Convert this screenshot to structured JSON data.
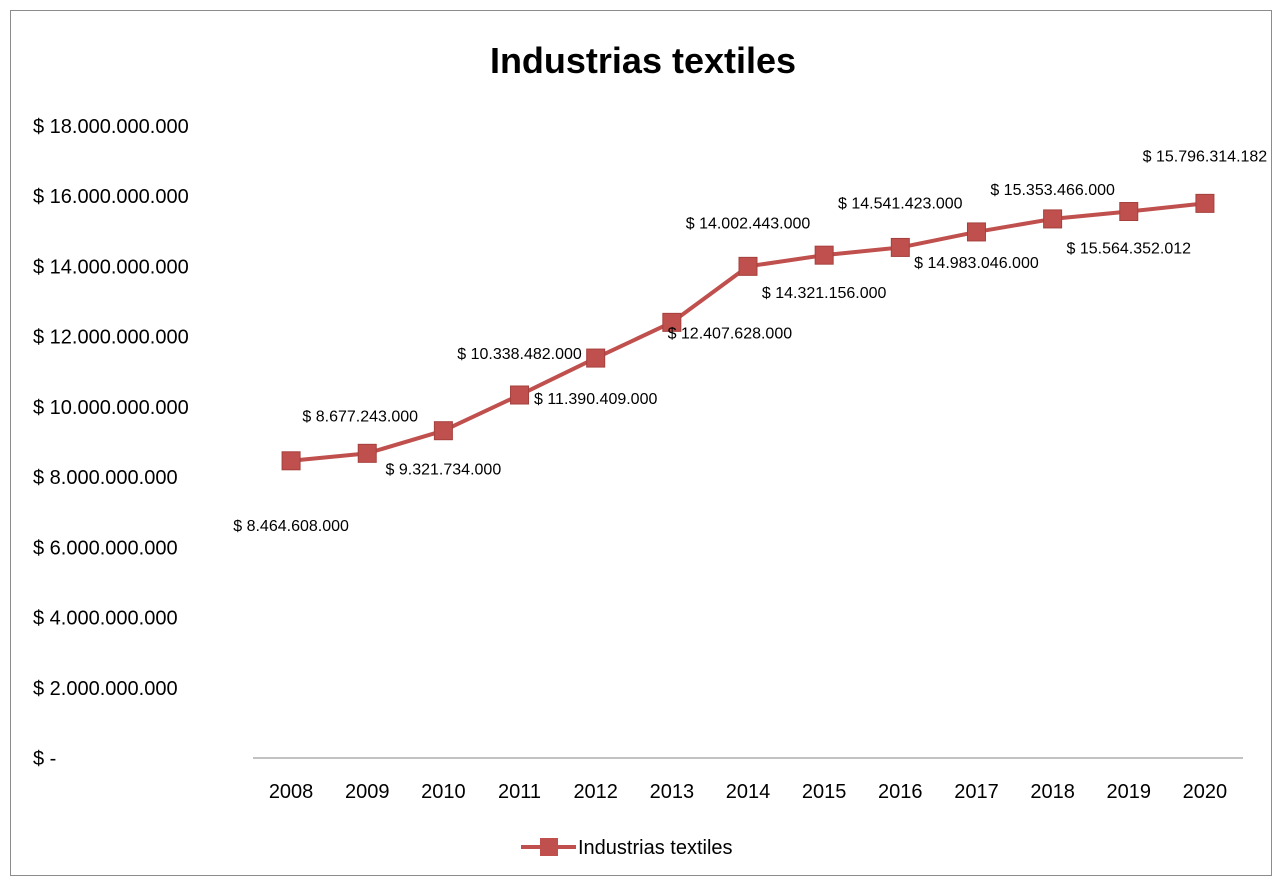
{
  "chart_data": {
    "type": "line",
    "title": "Industrias textiles",
    "xlabel": "",
    "ylabel": "",
    "categories": [
      "2008",
      "2009",
      "2010",
      "2011",
      "2012",
      "2013",
      "2014",
      "2015",
      "2016",
      "2017",
      "2018",
      "2019",
      "2020"
    ],
    "series": [
      {
        "name": "Industrias textiles",
        "color": "#c0504d",
        "values": [
          8464608000,
          8677243000,
          9321734000,
          10338482000,
          11390409000,
          12407628000,
          14002443000,
          14321156000,
          14541423000,
          14983046000,
          15353466000,
          15564352012,
          15796314182
        ],
        "data_labels": [
          "$ 8.464.608.000",
          "$ 8.677.243.000",
          "$ 9.321.734.000",
          "$ 10.338.482.000",
          "$ 11.390.409.000",
          "$ 12.407.628.000",
          "$ 14.002.443.000",
          "$ 14.321.156.000",
          "$ 14.541.423.000",
          "$ 14.983.046.000",
          "$ 15.353.466.000",
          "$ 15.564.352.012",
          "$ 15.796.314.182"
        ]
      }
    ],
    "ylim": [
      0,
      18000000000
    ],
    "y_tick_labels": [
      "$ -",
      "$ 2.000.000.000",
      "$ 4.000.000.000",
      "$ 6.000.000.000",
      "$ 8.000.000.000",
      "$ 10.000.000.000",
      "$ 12.000.000.000",
      "$ 14.000.000.000",
      "$ 16.000.000.000",
      "$ 18.000.000.000"
    ],
    "grid": false,
    "legend_position": "bottom",
    "marker": "square"
  }
}
